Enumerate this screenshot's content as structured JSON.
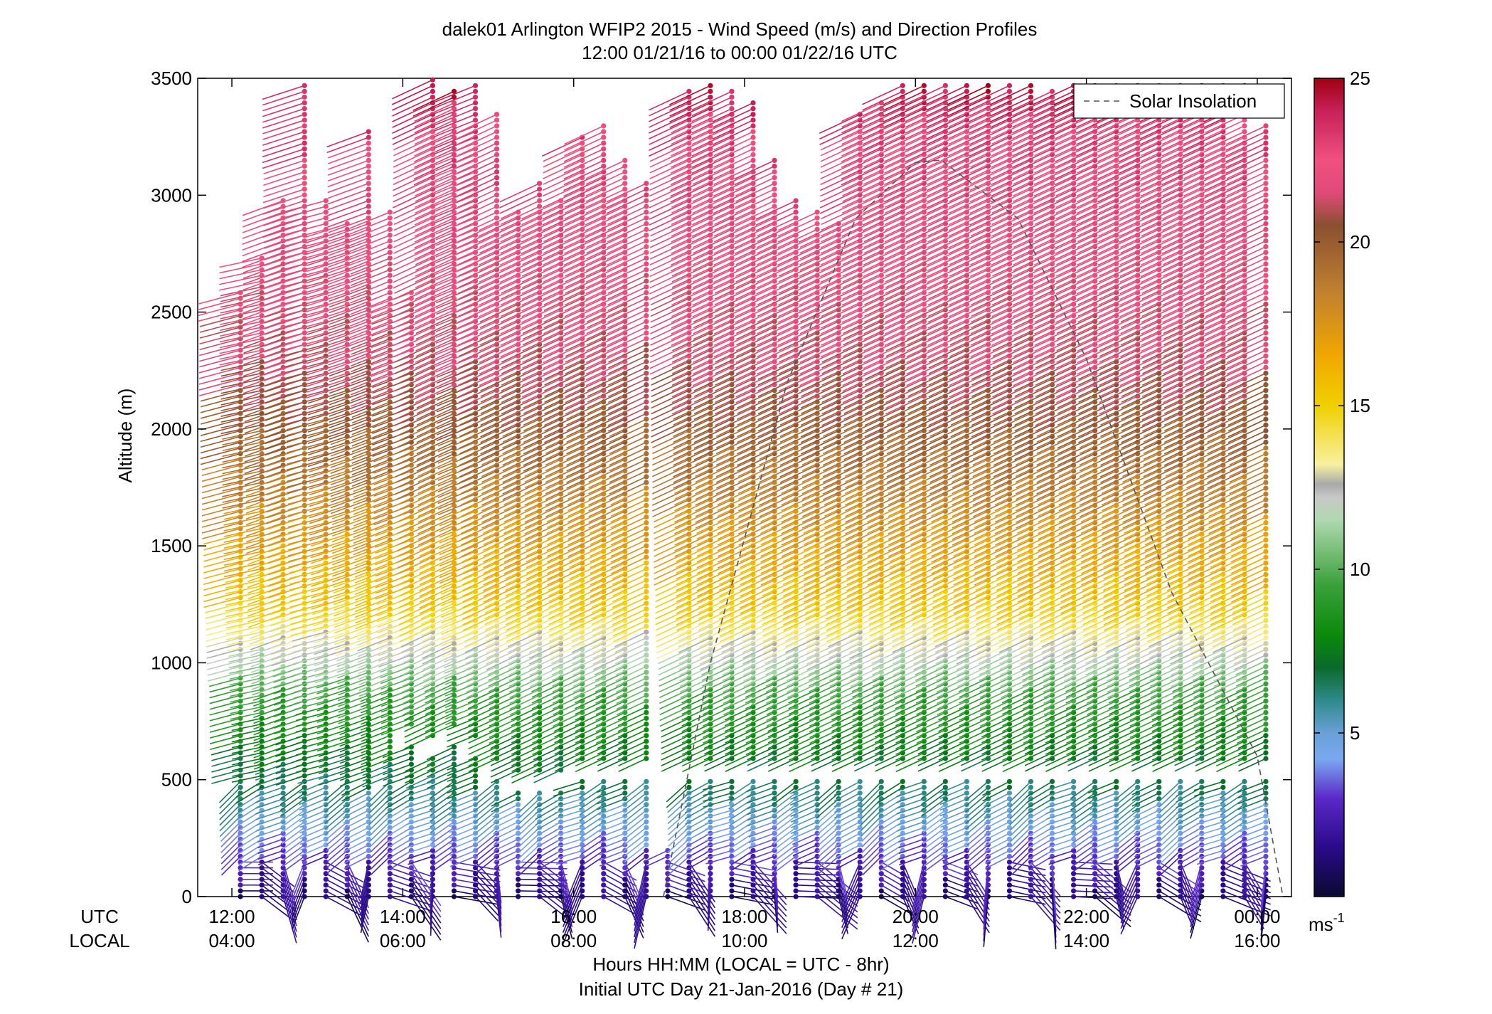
{
  "chart_data": {
    "type": "wind-barb-profile",
    "title": "dalek01 Arlington WFIP2 2015 - Wind Speed (m/s) and Direction Profiles",
    "subtitle": "12:00 01/21/16 to 00:00 01/22/16  UTC",
    "ylabel": "Altitude (m)",
    "xlabel": "Hours HH:MM  (LOCAL = UTC - 8hr)",
    "xlabel2": "Initial UTC Day 21-Jan-2016 (Day # 21)",
    "row_label_utc": "UTC",
    "row_label_local": "LOCAL",
    "ylim": [
      0,
      3500
    ],
    "xlim_hours": [
      11.6,
      24.4
    ],
    "y_ticks": [
      0,
      500,
      1000,
      1500,
      2000,
      2500,
      3000,
      3500
    ],
    "x_ticks": [
      {
        "hour": 12,
        "utc": "12:00",
        "local": "04:00"
      },
      {
        "hour": 14,
        "utc": "14:00",
        "local": "06:00"
      },
      {
        "hour": 16,
        "utc": "16:00",
        "local": "08:00"
      },
      {
        "hour": 18,
        "utc": "18:00",
        "local": "10:00"
      },
      {
        "hour": 20,
        "utc": "20:00",
        "local": "12:00"
      },
      {
        "hour": 22,
        "utc": "22:00",
        "local": "14:00"
      },
      {
        "hour": 24,
        "utc": "00:00",
        "local": "16:00"
      }
    ],
    "colorbar": {
      "ticks": [
        5,
        10,
        15,
        20,
        25
      ],
      "range": [
        0,
        25
      ],
      "units": "ms",
      "units_exp": "-1",
      "stops": [
        {
          "v": 0,
          "c": "#0a0a30"
        },
        {
          "v": 1.5,
          "c": "#2a0a8a"
        },
        {
          "v": 3,
          "c": "#5a28c8"
        },
        {
          "v": 4.2,
          "c": "#7aa8f0"
        },
        {
          "v": 5,
          "c": "#6aa0d8"
        },
        {
          "v": 6,
          "c": "#2e8a8a"
        },
        {
          "v": 7,
          "c": "#0a6a2a"
        },
        {
          "v": 8,
          "c": "#0a8a0a"
        },
        {
          "v": 9.5,
          "c": "#3aa03a"
        },
        {
          "v": 11.5,
          "c": "#b0d8b0"
        },
        {
          "v": 12.2,
          "c": "#c8c8c8"
        },
        {
          "v": 12.6,
          "c": "#a8a8a8"
        },
        {
          "v": 13.2,
          "c": "#f8f0a0"
        },
        {
          "v": 15,
          "c": "#f0d000"
        },
        {
          "v": 16.5,
          "c": "#f0a800"
        },
        {
          "v": 18.5,
          "c": "#c08030"
        },
        {
          "v": 20.5,
          "c": "#8a5030"
        },
        {
          "v": 21.5,
          "c": "#e04a78"
        },
        {
          "v": 22.5,
          "c": "#f05080"
        },
        {
          "v": 24,
          "c": "#c8205a"
        },
        {
          "v": 25,
          "c": "#a00010"
        }
      ]
    },
    "legend": {
      "label": "Solar Insolation",
      "position": "top-right"
    },
    "solar_insolation_curve": [
      [
        17.05,
        0
      ],
      [
        17.6,
        1000
      ],
      [
        18.5,
        2200
      ],
      [
        19.3,
        2900
      ],
      [
        20.0,
        3140
      ],
      [
        20.3,
        3150
      ],
      [
        21.2,
        2900
      ],
      [
        22.0,
        2300
      ],
      [
        23.0,
        1300
      ],
      [
        24.0,
        600
      ],
      [
        24.3,
        0
      ]
    ],
    "profiles": [
      {
        "t": 12.1,
        "top": 2600,
        "low_top": 1050,
        "dir_deg": 255
      },
      {
        "t": 12.35,
        "top": 2750,
        "low_top": 1400,
        "dir_deg": 258
      },
      {
        "t": 12.6,
        "top": 3000,
        "low_top": 1000,
        "dir_deg": 250
      },
      {
        "t": 12.85,
        "top": 3480,
        "low_top": 1050,
        "dir_deg": 252
      },
      {
        "t": 13.1,
        "top": 3000,
        "low_top": 1000,
        "dir_deg": 255
      },
      {
        "t": 13.35,
        "top": 2900,
        "low_top": 1000,
        "dir_deg": 252
      },
      {
        "t": 13.6,
        "top": 3280,
        "low_top": 1000,
        "dir_deg": 250
      },
      {
        "t": 13.85,
        "top": 2950,
        "low_top": 1000,
        "dir_deg": 248
      },
      {
        "t": 14.1,
        "top": 2600,
        "low_top": 650,
        "dir_deg": 250
      },
      {
        "t": 14.35,
        "top": 3500,
        "low_top": 600,
        "dir_deg": 245
      },
      {
        "t": 14.6,
        "top": 3450,
        "low_top": 650,
        "dir_deg": 245
      },
      {
        "t": 14.85,
        "top": 3480,
        "low_top": 600,
        "dir_deg": 248
      },
      {
        "t": 15.1,
        "top": 3350,
        "low_top": 500,
        "dir_deg": 245
      },
      {
        "t": 15.35,
        "top": 2950,
        "low_top": 450,
        "dir_deg": 245
      },
      {
        "t": 15.6,
        "top": 3050,
        "low_top": 450,
        "dir_deg": 245
      },
      {
        "t": 15.85,
        "top": 3000,
        "low_top": 450,
        "dir_deg": 245
      },
      {
        "t": 16.1,
        "top": 3250,
        "low_top": 500,
        "dir_deg": 245
      },
      {
        "t": 16.35,
        "top": 3300,
        "low_top": 500,
        "dir_deg": 245
      },
      {
        "t": 16.6,
        "top": 3150,
        "low_top": 500,
        "dir_deg": 245
      },
      {
        "t": 16.85,
        "top": 3050,
        "low_top": 500,
        "dir_deg": 245
      },
      {
        "t": 17.1,
        "top": 0,
        "low_top": 200,
        "dir_deg": 245
      },
      {
        "t": 17.35,
        "top": 3450,
        "low_top": 500,
        "dir_deg": 245
      },
      {
        "t": 17.6,
        "top": 3480,
        "low_top": 500,
        "dir_deg": 245
      },
      {
        "t": 17.85,
        "top": 3450,
        "low_top": 500,
        "dir_deg": 245
      },
      {
        "t": 18.1,
        "top": 3400,
        "low_top": 500,
        "dir_deg": 245
      },
      {
        "t": 18.35,
        "top": 3150,
        "low_top": 500,
        "dir_deg": 245
      },
      {
        "t": 18.6,
        "top": 3000,
        "low_top": 500,
        "dir_deg": 245
      },
      {
        "t": 18.85,
        "top": 2950,
        "low_top": 500,
        "dir_deg": 245
      },
      {
        "t": 19.1,
        "top": 2900,
        "low_top": 500,
        "dir_deg": 245
      },
      {
        "t": 19.35,
        "top": 3350,
        "low_top": 500,
        "dir_deg": 245
      },
      {
        "t": 19.6,
        "top": 3400,
        "low_top": 500,
        "dir_deg": 245
      },
      {
        "t": 19.85,
        "top": 3480,
        "low_top": 500,
        "dir_deg": 245
      },
      {
        "t": 20.1,
        "top": 3480,
        "low_top": 500,
        "dir_deg": 245
      },
      {
        "t": 20.35,
        "top": 3480,
        "low_top": 500,
        "dir_deg": 245
      },
      {
        "t": 20.6,
        "top": 3480,
        "low_top": 500,
        "dir_deg": 245
      },
      {
        "t": 20.85,
        "top": 3480,
        "low_top": 500,
        "dir_deg": 245
      },
      {
        "t": 21.1,
        "top": 3480,
        "low_top": 500,
        "dir_deg": 245
      },
      {
        "t": 21.35,
        "top": 3480,
        "low_top": 500,
        "dir_deg": 245
      },
      {
        "t": 21.6,
        "top": 3450,
        "low_top": 500,
        "dir_deg": 245
      },
      {
        "t": 21.85,
        "top": 3480,
        "low_top": 500,
        "dir_deg": 245
      },
      {
        "t": 22.1,
        "top": 3480,
        "low_top": 500,
        "dir_deg": 245
      },
      {
        "t": 22.35,
        "top": 3480,
        "low_top": 500,
        "dir_deg": 245
      },
      {
        "t": 22.6,
        "top": 3480,
        "low_top": 500,
        "dir_deg": 245
      },
      {
        "t": 22.85,
        "top": 3480,
        "low_top": 500,
        "dir_deg": 245
      },
      {
        "t": 23.1,
        "top": 3480,
        "low_top": 500,
        "dir_deg": 245
      },
      {
        "t": 23.35,
        "top": 3480,
        "low_top": 500,
        "dir_deg": 245
      },
      {
        "t": 23.6,
        "top": 3480,
        "low_top": 500,
        "dir_deg": 245
      },
      {
        "t": 23.85,
        "top": 3480,
        "low_top": 500,
        "dir_deg": 245
      },
      {
        "t": 24.1,
        "top": 3300,
        "low_top": 500,
        "dir_deg": 245
      }
    ]
  }
}
